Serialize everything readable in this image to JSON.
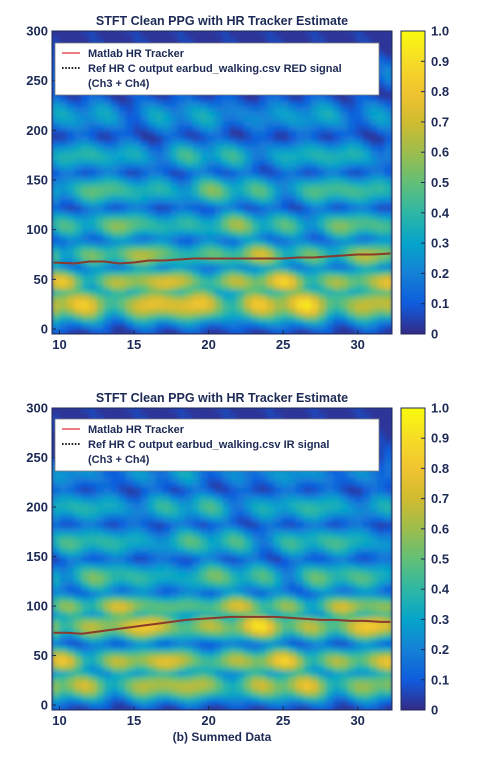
{
  "caption": "(b) Summed Data",
  "chart_data": [
    {
      "type": "heatmap",
      "title": "STFT Clean PPG with HR Tracker Estimate",
      "xlabel": "",
      "ylabel": "",
      "xlim": [
        9.5,
        32.3
      ],
      "ylim": [
        -5,
        300
      ],
      "xticks": [
        10,
        15,
        20,
        25,
        30
      ],
      "yticks": [
        0,
        50,
        100,
        150,
        200,
        250,
        300
      ],
      "colorbar": {
        "range": [
          0,
          1
        ],
        "ticks": [
          0,
          0.1,
          0.2,
          0.3,
          0.4,
          0.5,
          0.6,
          0.7,
          0.8,
          0.9,
          1.0
        ],
        "tick_labels": [
          "0",
          "0.1",
          "0.2",
          "0.3",
          "0.4",
          "0.5",
          "0.6",
          "0.7",
          "0.8",
          "0.9",
          "1.0"
        ]
      },
      "legend": {
        "position": "top-left",
        "entries": [
          {
            "label": "Matlab HR Tracker",
            "style": "solid",
            "color": "#e77f82"
          },
          {
            "label": "Ref HR C output earbud_walking.csv RED signal",
            "style": "dotted",
            "color": "#222222"
          },
          {
            "label": "(Ch3 + Ch4)",
            "style": "none",
            "color": ""
          }
        ]
      },
      "heat_bands": [
        {
          "y": 25,
          "amp": 0.95,
          "width": 18
        },
        {
          "y": 48,
          "amp": 0.85,
          "width": 14
        },
        {
          "y": 75,
          "amp": 0.7,
          "width": 14
        },
        {
          "y": 105,
          "amp": 0.6,
          "width": 15
        },
        {
          "y": 140,
          "amp": 0.55,
          "width": 16
        },
        {
          "y": 175,
          "amp": 0.45,
          "width": 16
        },
        {
          "y": 215,
          "amp": 0.35,
          "width": 18
        },
        {
          "y": 255,
          "amp": 0.25,
          "width": 18
        }
      ],
      "series": [
        {
          "name": "Matlab HR Tracker",
          "x": [
            9.6,
            11,
            12,
            13,
            14,
            15,
            16,
            17,
            18,
            19,
            20,
            21,
            22,
            23,
            24,
            25,
            26,
            27,
            28,
            29,
            30,
            31,
            32.2
          ],
          "y": [
            67,
            66,
            68,
            68,
            66,
            67,
            69,
            69,
            70,
            71,
            71,
            71,
            71,
            71,
            71,
            71,
            72,
            72,
            73,
            74,
            75,
            75,
            76
          ]
        }
      ]
    },
    {
      "type": "heatmap",
      "title": "STFT Clean PPG with HR Tracker Estimate",
      "xlabel": "",
      "ylabel": "",
      "xlim": [
        9.5,
        32.3
      ],
      "ylim": [
        -5,
        300
      ],
      "xticks": [
        10,
        15,
        20,
        25,
        30
      ],
      "yticks": [
        0,
        50,
        100,
        150,
        200,
        250,
        300
      ],
      "colorbar": {
        "range": [
          0,
          1
        ],
        "ticks": [
          0,
          0.1,
          0.2,
          0.3,
          0.4,
          0.5,
          0.6,
          0.7,
          0.8,
          0.9,
          1.0
        ],
        "tick_labels": [
          "0",
          "0.1",
          "0.2",
          "0.3",
          "0.4",
          "0.5",
          "0.6",
          "0.7",
          "0.8",
          "0.9",
          "1.0"
        ]
      },
      "legend": {
        "position": "top-left",
        "entries": [
          {
            "label": "Matlab HR Tracker",
            "style": "solid",
            "color": "#e77f82"
          },
          {
            "label": "Ref HR C output earbud_walking.csv IR signal",
            "style": "dotted",
            "color": "#222222"
          },
          {
            "label": "(Ch3 + Ch4)",
            "style": "none",
            "color": ""
          }
        ]
      },
      "heat_bands": [
        {
          "y": 20,
          "amp": 0.8,
          "width": 16
        },
        {
          "y": 45,
          "amp": 0.85,
          "width": 14
        },
        {
          "y": 80,
          "amp": 0.9,
          "width": 15
        },
        {
          "y": 100,
          "amp": 0.75,
          "width": 13
        },
        {
          "y": 130,
          "amp": 0.55,
          "width": 16
        },
        {
          "y": 165,
          "amp": 0.5,
          "width": 16
        },
        {
          "y": 200,
          "amp": 0.45,
          "width": 16
        },
        {
          "y": 235,
          "amp": 0.3,
          "width": 18
        }
      ],
      "series": [
        {
          "name": "Matlab HR Tracker",
          "x": [
            9.6,
            10.5,
            11.5,
            12.5,
            13.5,
            14.5,
            15.5,
            16.5,
            17.5,
            18.5,
            19.5,
            20.5,
            21.5,
            22.5,
            23.5,
            24.5,
            25.5,
            26.5,
            27.5,
            28.5,
            29.5,
            30.5,
            31.5,
            32.2
          ],
          "y": [
            73,
            73,
            72,
            74,
            76,
            78,
            80,
            82,
            84,
            86,
            87,
            88,
            89,
            89,
            89,
            89,
            88,
            87,
            86,
            86,
            85,
            85,
            84,
            84
          ]
        }
      ]
    }
  ]
}
